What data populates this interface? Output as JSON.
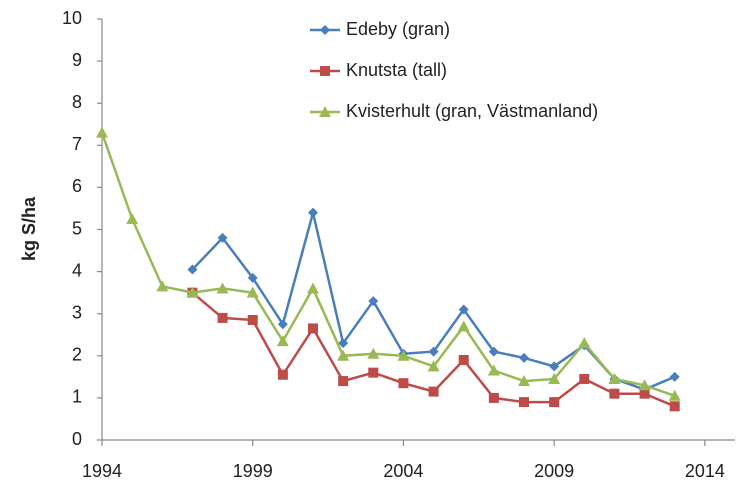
{
  "chart_data": {
    "type": "line",
    "y_label": "kg S/ha",
    "x": [
      1994,
      1995,
      1996,
      1997,
      1998,
      1999,
      2000,
      2001,
      2002,
      2003,
      2004,
      2005,
      2006,
      2007,
      2008,
      2009,
      2010,
      2011,
      2012,
      2013
    ],
    "series": [
      {
        "name": "Edeby (gran)",
        "color": "#4a7ebb",
        "marker": "diamond",
        "values": [
          null,
          null,
          null,
          4.05,
          4.8,
          3.85,
          2.75,
          5.4,
          2.3,
          3.3,
          2.05,
          2.1,
          3.1,
          2.1,
          1.95,
          1.75,
          2.25,
          1.45,
          1.2,
          1.5
        ]
      },
      {
        "name": "Knutsta (tall)",
        "color": "#be4b48",
        "marker": "square",
        "values": [
          null,
          null,
          null,
          3.5,
          2.9,
          2.85,
          1.55,
          2.65,
          1.4,
          1.6,
          1.35,
          1.15,
          1.9,
          1.0,
          0.9,
          0.9,
          1.45,
          1.1,
          1.1,
          0.8
        ]
      },
      {
        "name": "Kvisterhult (gran, Västmanland)",
        "color": "#98b954",
        "marker": "triangle",
        "values": [
          7.3,
          5.25,
          3.65,
          3.5,
          3.6,
          3.5,
          2.35,
          3.6,
          2.0,
          2.05,
          2.0,
          1.75,
          2.7,
          1.65,
          1.4,
          1.45,
          2.3,
          1.45,
          1.3,
          1.05
        ]
      }
    ],
    "xlim": [
      1994,
      2015
    ],
    "xticks": [
      1994,
      1999,
      2004,
      2009,
      2014
    ],
    "ylim": [
      0,
      10
    ],
    "yticks": [
      0,
      1,
      2,
      3,
      4,
      5,
      6,
      7,
      8,
      9,
      10
    ],
    "grid": false,
    "legend": "top-right"
  }
}
